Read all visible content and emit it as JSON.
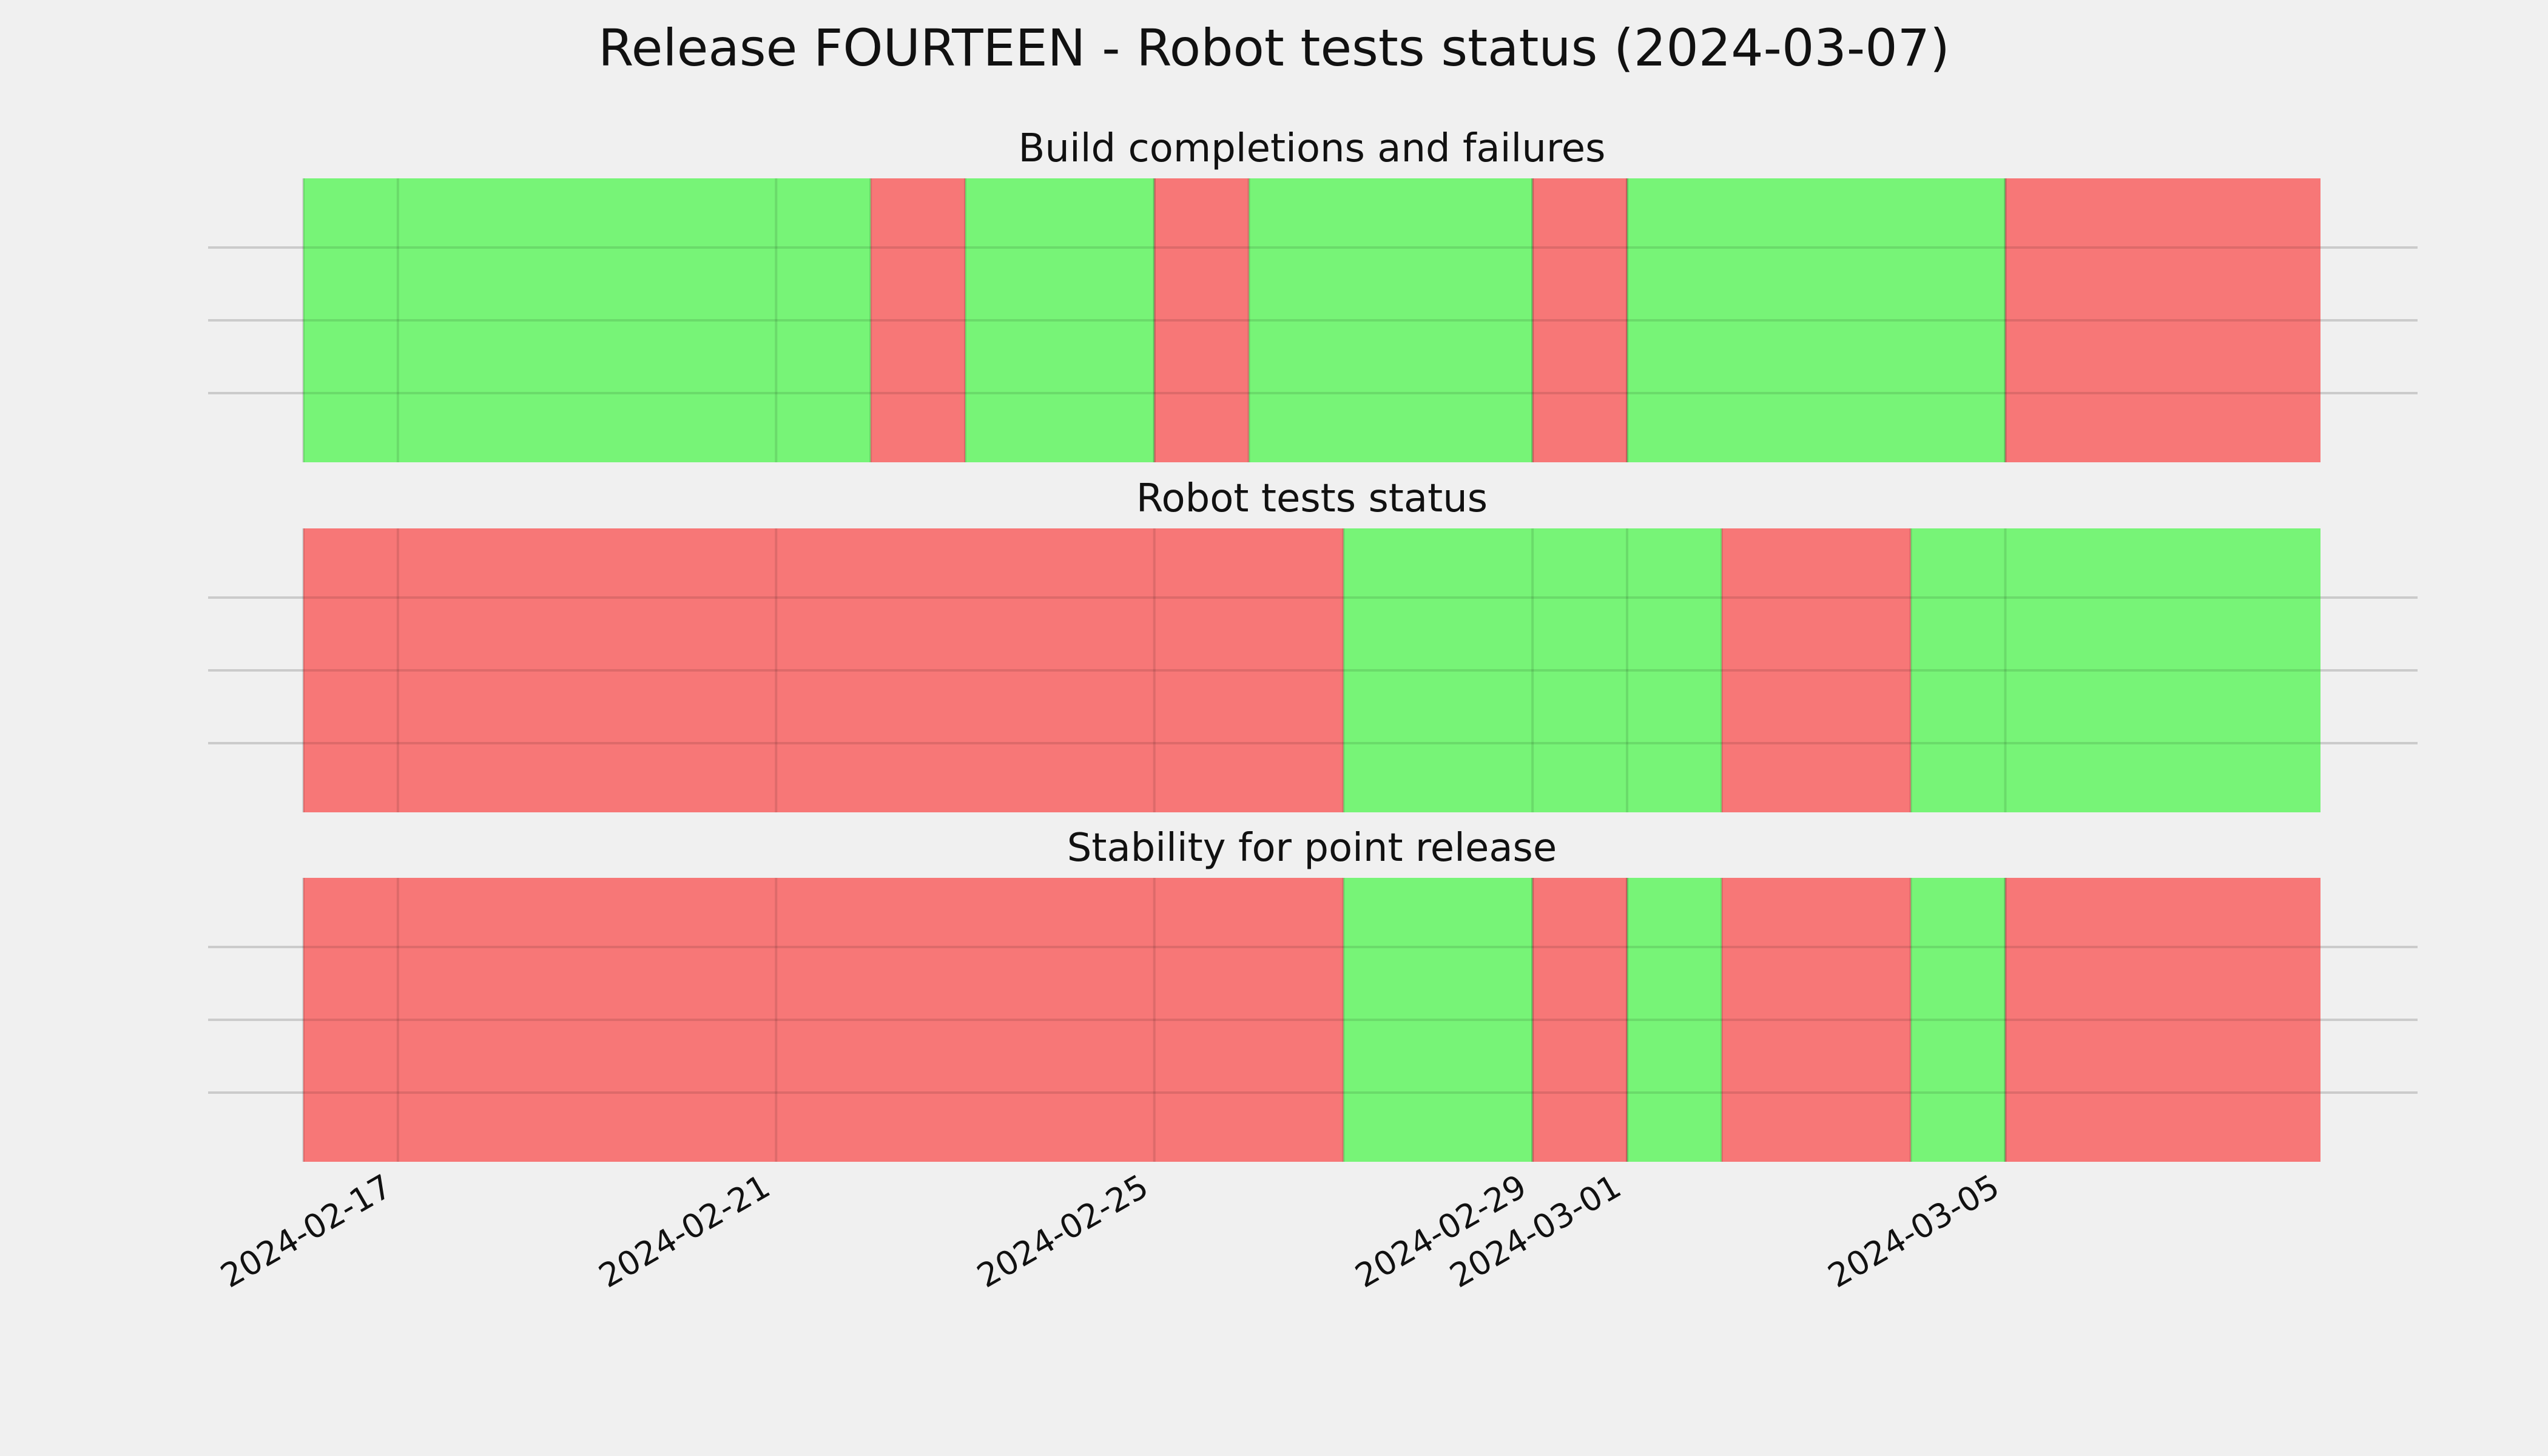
{
  "chart_data": {
    "type": "timeline",
    "title": "Release FOURTEEN - Robot tests status (2024-03-07)",
    "x_axis": {
      "type": "date",
      "range": [
        "2024-02-16",
        "2024-03-08T08:00"
      ],
      "tick_labels": [
        "2024-02-17",
        "2024-02-21",
        "2024-02-25",
        "2024-02-29",
        "2024-03-01",
        "2024-03-05"
      ],
      "tick_rotation": 30
    },
    "grid": true,
    "colors": {
      "pass": "#77f477",
      "fail": "#f77777",
      "background": "#f0f0f0",
      "grid": "#cbcbcb"
    },
    "panels": [
      {
        "title": "Build completions and failures",
        "segments": [
          {
            "start": "2024-02-16",
            "end": "2024-02-22",
            "status": "pass"
          },
          {
            "start": "2024-02-22",
            "end": "2024-02-23",
            "status": "fail"
          },
          {
            "start": "2024-02-23",
            "end": "2024-02-25",
            "status": "pass"
          },
          {
            "start": "2024-02-25",
            "end": "2024-02-26",
            "status": "fail"
          },
          {
            "start": "2024-02-26",
            "end": "2024-02-29",
            "status": "pass"
          },
          {
            "start": "2024-02-29",
            "end": "2024-03-01",
            "status": "fail"
          },
          {
            "start": "2024-03-01",
            "end": "2024-03-05",
            "status": "pass"
          },
          {
            "start": "2024-03-05",
            "end": "2024-03-08T08:00",
            "status": "fail"
          }
        ]
      },
      {
        "title": "Robot tests status",
        "segments": [
          {
            "start": "2024-02-16",
            "end": "2024-02-27",
            "status": "fail"
          },
          {
            "start": "2024-02-27",
            "end": "2024-03-02",
            "status": "pass"
          },
          {
            "start": "2024-03-02",
            "end": "2024-03-04",
            "status": "fail"
          },
          {
            "start": "2024-03-04",
            "end": "2024-03-08T08:00",
            "status": "pass"
          }
        ]
      },
      {
        "title": "Stability for point release",
        "segments": [
          {
            "start": "2024-02-16",
            "end": "2024-02-27",
            "status": "fail"
          },
          {
            "start": "2024-02-27",
            "end": "2024-02-29",
            "status": "pass"
          },
          {
            "start": "2024-02-29",
            "end": "2024-03-01",
            "status": "fail"
          },
          {
            "start": "2024-03-01",
            "end": "2024-03-02",
            "status": "pass"
          },
          {
            "start": "2024-03-02",
            "end": "2024-03-04",
            "status": "fail"
          },
          {
            "start": "2024-03-04",
            "end": "2024-03-05",
            "status": "pass"
          },
          {
            "start": "2024-03-05",
            "end": "2024-03-08T08:00",
            "status": "fail"
          }
        ]
      }
    ]
  }
}
